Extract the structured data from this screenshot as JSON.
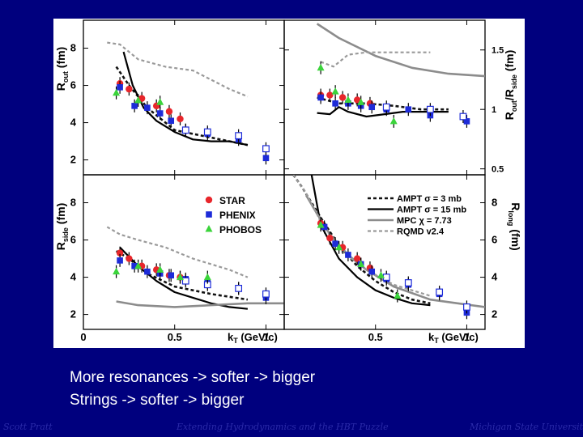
{
  "slide": {
    "caption_lines": [
      "More resonances -> softer -> bigger",
      "Strings -> softer -> bigger"
    ],
    "footer_left": "Scott Pratt",
    "footer_center": "Extending Hydrodynamics and the HBT Puzzle",
    "footer_right": "Michigan State University"
  },
  "chart_data": {
    "type": "scatter",
    "x_label": "k_T (GeV/c)",
    "x_ticks_left": [
      "0",
      "0.5",
      "1"
    ],
    "x_ticks_right": [
      "0.5",
      "1"
    ],
    "legend_experiments": [
      "STAR",
      "PHENIX",
      "PHOBOS"
    ],
    "legend_models": [
      "AMPT σ = 3 mb",
      "AMPT σ = 15 mb",
      "MPC χ = 7.73",
      "RQMD v2.4"
    ],
    "colors": {
      "STAR": "#e8262b",
      "PHENIX": "#1d2bd8",
      "PHOBOS": "#3bd43b",
      "AMPT_3mb": "#111111",
      "AMPT_15mb": "#000000",
      "MPC": "#8c8c8c",
      "RQMD": "#9a9a9a"
    },
    "panels": [
      {
        "id": "rout",
        "ylabel": "R_out (fm)",
        "yticks": [
          2,
          4,
          6,
          8
        ],
        "ylim": [
          1.2,
          9.5
        ],
        "xlim": [
          0,
          1.1
        ],
        "series": [
          {
            "name": "STAR",
            "x": [
              0.2,
              0.25,
              0.32,
              0.4,
              0.47,
              0.53
            ],
            "y": [
              6.1,
              5.8,
              5.3,
              4.9,
              4.6,
              4.2
            ]
          },
          {
            "name": "PHENIX",
            "x": [
              0.2,
              0.28,
              0.35,
              0.42,
              0.48,
              0.56,
              0.68,
              0.85,
              1.0
            ],
            "y": [
              5.9,
              4.9,
              4.8,
              4.5,
              4.1,
              3.6,
              3.4,
              3.1,
              2.1
            ]
          },
          {
            "name": "PHENIX open",
            "x": [
              0.56,
              0.68,
              0.85,
              1.0
            ],
            "y": [
              3.6,
              3.5,
              3.3,
              2.6
            ]
          },
          {
            "name": "PHOBOS",
            "x": [
              0.18,
              0.3,
              0.42
            ],
            "y": [
              5.6,
              5.2,
              5.1
            ]
          },
          {
            "name": "AMPT σ = 3 mb",
            "x": [
              0.18,
              0.25,
              0.35,
              0.5,
              0.7,
              0.9
            ],
            "y": [
              7.0,
              6.0,
              4.8,
              3.6,
              3.2,
              2.8
            ]
          },
          {
            "name": "AMPT σ = 15 mb",
            "x": [
              0.22,
              0.27,
              0.33,
              0.4,
              0.5,
              0.6,
              0.7,
              0.8,
              0.9
            ],
            "y": [
              7.8,
              6.0,
              4.8,
              4.1,
              3.5,
              3.1,
              3.0,
              3.0,
              2.8
            ]
          },
          {
            "name": "RQMD v2.4",
            "x": [
              0.13,
              0.2,
              0.3,
              0.45,
              0.6,
              0.8,
              0.9
            ],
            "y": [
              8.3,
              8.2,
              7.4,
              7.0,
              6.8,
              5.8,
              5.4
            ]
          }
        ]
      },
      {
        "id": "ratio",
        "ylabel": "R_out/R_side (fm)",
        "yticks": [
          0.5,
          1,
          1.5
        ],
        "ylim": [
          0.45,
          1.75
        ],
        "xlim": [
          0,
          1.1
        ],
        "series": [
          {
            "name": "STAR",
            "x": [
              0.2,
              0.25,
              0.32,
              0.4,
              0.47
            ],
            "y": [
              1.12,
              1.12,
              1.1,
              1.08,
              1.05
            ]
          },
          {
            "name": "PHENIX",
            "x": [
              0.2,
              0.28,
              0.35,
              0.42,
              0.48,
              0.56,
              0.68,
              0.8,
              1.0
            ],
            "y": [
              1.1,
              1.05,
              1.05,
              1.03,
              1.02,
              1.0,
              1.0,
              0.95,
              0.9
            ]
          },
          {
            "name": "PHENIX open",
            "x": [
              0.56,
              0.8,
              0.98
            ],
            "y": [
              1.02,
              1.0,
              0.94
            ]
          },
          {
            "name": "PHOBOS",
            "x": [
              0.2,
              0.28,
              0.35,
              0.42,
              0.6
            ],
            "y": [
              1.35,
              1.15,
              1.08,
              1.06,
              0.9
            ]
          },
          {
            "name": "AMPT σ = 3 mb",
            "x": [
              0.18,
              0.3,
              0.45,
              0.6,
              0.75,
              0.9
            ],
            "y": [
              1.1,
              1.05,
              1.05,
              1.03,
              1.0,
              1.0
            ]
          },
          {
            "name": "AMPT σ = 15 mb",
            "x": [
              0.18,
              0.25,
              0.3,
              0.35,
              0.45,
              0.55,
              0.65,
              0.75,
              0.9
            ],
            "y": [
              0.97,
              0.96,
              1.02,
              0.98,
              0.94,
              0.96,
              0.98,
              0.98,
              0.98
            ]
          },
          {
            "name": "MPC χ = 7.73",
            "x": [
              0.18,
              0.3,
              0.5,
              0.7,
              0.9,
              1.1
            ],
            "y": [
              1.72,
              1.6,
              1.45,
              1.35,
              1.3,
              1.28
            ]
          },
          {
            "name": "RQMD v2.4",
            "x": [
              0.2,
              0.27,
              0.35,
              0.45,
              0.55,
              0.65,
              0.8
            ],
            "y": [
              1.4,
              1.36,
              1.46,
              1.48,
              1.48,
              1.48,
              1.48
            ]
          }
        ]
      },
      {
        "id": "rside",
        "ylabel": "R_side (fm)",
        "yticks": [
          2,
          4,
          6,
          8
        ],
        "ylim": [
          1.2,
          9.5
        ],
        "xlim": [
          0,
          1.1
        ],
        "series": [
          {
            "name": "STAR",
            "x": [
              0.2,
              0.25,
              0.32,
              0.4,
              0.47,
              0.53
            ],
            "y": [
              5.3,
              5.0,
              4.6,
              4.4,
              4.1,
              4.0
            ]
          },
          {
            "name": "PHENIX",
            "x": [
              0.2,
              0.28,
              0.35,
              0.42,
              0.48,
              0.56,
              0.68,
              0.85,
              1.0
            ],
            "y": [
              4.9,
              4.6,
              4.3,
              4.2,
              4.1,
              3.9,
              3.7,
              3.4,
              2.9
            ]
          },
          {
            "name": "PHENIX open",
            "x": [
              0.56,
              0.68,
              0.85,
              1.0
            ],
            "y": [
              3.8,
              3.6,
              3.4,
              3.1
            ]
          },
          {
            "name": "PHOBOS",
            "x": [
              0.18,
              0.3,
              0.42,
              0.53,
              0.68
            ],
            "y": [
              4.3,
              4.6,
              4.4,
              4.0,
              4.0
            ]
          },
          {
            "name": "AMPT σ = 3 mb",
            "x": [
              0.18,
              0.25,
              0.35,
              0.5,
              0.7,
              0.9
            ],
            "y": [
              5.4,
              5.0,
              4.2,
              3.5,
              3.1,
              2.8
            ]
          },
          {
            "name": "AMPT σ = 15 mb",
            "x": [
              0.2,
              0.3,
              0.4,
              0.5,
              0.6,
              0.7,
              0.8,
              0.9
            ],
            "y": [
              5.6,
              4.6,
              3.8,
              3.2,
              2.9,
              2.6,
              2.4,
              2.3
            ]
          },
          {
            "name": "MPC χ = 7.73",
            "x": [
              0.18,
              0.3,
              0.5,
              0.7,
              0.9,
              1.1
            ],
            "y": [
              2.7,
              2.5,
              2.4,
              2.5,
              2.6,
              2.6
            ]
          },
          {
            "name": "RQMD v2.4",
            "x": [
              0.13,
              0.2,
              0.3,
              0.45,
              0.6,
              0.8,
              0.9
            ],
            "y": [
              6.7,
              6.3,
              6.0,
              5.6,
              5.0,
              4.4,
              4.0
            ]
          }
        ]
      },
      {
        "id": "rlong",
        "ylabel": "R_long (fm)",
        "yticks": [
          2,
          4,
          6,
          8
        ],
        "ylim": [
          1.2,
          9.5
        ],
        "xlim": [
          0,
          1.1
        ],
        "series": [
          {
            "name": "STAR",
            "x": [
              0.2,
              0.25,
              0.32,
              0.4,
              0.47
            ],
            "y": [
              6.9,
              6.1,
              5.6,
              5.0,
              4.5
            ]
          },
          {
            "name": "PHENIX",
            "x": [
              0.22,
              0.28,
              0.35,
              0.42,
              0.48,
              0.56,
              0.68,
              0.85,
              1.0
            ],
            "y": [
              6.7,
              5.8,
              5.2,
              4.7,
              4.3,
              3.9,
              3.6,
              3.1,
              2.1
            ]
          },
          {
            "name": "PHENIX open",
            "x": [
              0.56,
              0.68,
              0.85,
              1.0
            ],
            "y": [
              4.0,
              3.7,
              3.2,
              2.4
            ]
          },
          {
            "name": "PHOBOS",
            "x": [
              0.2,
              0.3,
              0.42,
              0.53,
              0.62
            ],
            "y": [
              6.8,
              5.6,
              4.7,
              4.1,
              3.0
            ]
          },
          {
            "name": "AMPT σ = 3 mb",
            "x": [
              0.05,
              0.1,
              0.15,
              0.2,
              0.3,
              0.4,
              0.5,
              0.6,
              0.7,
              0.8
            ],
            "y": [
              9.5,
              8.8,
              8.0,
              7.2,
              5.7,
              4.6,
              3.8,
              3.2,
              2.8,
              2.6
            ]
          },
          {
            "name": "AMPT σ = 15 mb",
            "x": [
              0.15,
              0.2,
              0.3,
              0.4,
              0.5,
              0.6,
              0.7,
              0.8
            ],
            "y": [
              9.5,
              6.8,
              5.0,
              4.0,
              3.3,
              2.9,
              2.6,
              2.5
            ]
          },
          {
            "name": "MPC χ = 7.73",
            "x": [
              0.12,
              0.18,
              0.25,
              0.35,
              0.45,
              0.6,
              0.8,
              1.1
            ],
            "y": [
              8.4,
              7.4,
              6.3,
              5.2,
              4.4,
              3.5,
              2.8,
              2.4
            ]
          },
          {
            "name": "RQMD v2.4",
            "x": [
              0.05,
              0.12,
              0.2,
              0.3,
              0.45,
              0.6,
              0.8
            ],
            "y": [
              9.5,
              8.5,
              7.0,
              5.5,
              4.4,
              3.6,
              3.0
            ]
          }
        ]
      }
    ]
  }
}
